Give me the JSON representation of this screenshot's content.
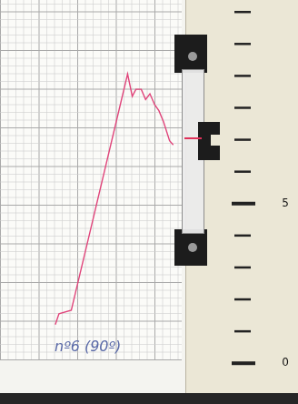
{
  "chart_data": {
    "type": "line",
    "annotations": [
      "nº6 (90º)"
    ],
    "x": [
      1.66,
      1.77,
      2.14,
      2.68,
      3.83,
      3.97,
      4.08,
      4.24,
      4.37,
      4.5,
      4.64,
      4.77,
      4.91,
      5.09,
      5.2
    ],
    "values": [
      1.21,
      1.55,
      1.66,
      4.02,
      9.06,
      8.36,
      8.58,
      8.58,
      8.26,
      8.44,
      8.1,
      7.91,
      7.56,
      6.97,
      6.84
    ],
    "color": "#e0457b",
    "xlim": [
      0,
      8.3
    ],
    "ylim": [
      -0.9,
      11
    ],
    "yticks": [
      0,
      5
    ],
    "grid": true,
    "tick_labels": "y"
  }
}
